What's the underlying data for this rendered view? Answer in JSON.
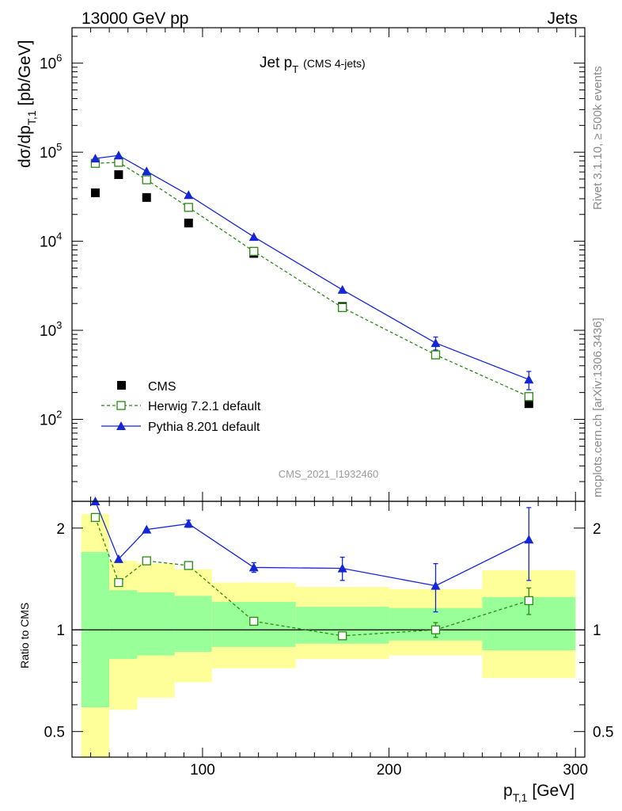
{
  "header": {
    "left_label": "13000 GeV pp",
    "right_label": "Jets"
  },
  "side_text": {
    "rivet": "Rivet 3.1.10, ≥ 500k events",
    "mcplots": "mcplots.cern.ch [arXiv:1306.3436]"
  },
  "chart_data": [
    {
      "type": "scatter",
      "title_main": "Jet p",
      "title_sub": "T",
      "title_note": "(CMS 4-jets)",
      "ylabel": "dσ/dp",
      "ylabel_sub": "T,1",
      "ylabel_unit": "[pb/GeV]",
      "x_scale": "linear",
      "y_scale": "log",
      "xlim": [
        30,
        305
      ],
      "ylim": [
        12,
        2500000
      ],
      "y_ticks": [
        {
          "value": 100,
          "base": "10",
          "exp": "2"
        },
        {
          "value": 1000,
          "base": "10",
          "exp": "3"
        },
        {
          "value": 10000,
          "base": "10",
          "exp": "4"
        },
        {
          "value": 100000,
          "base": "10",
          "exp": "5"
        },
        {
          "value": 1000000,
          "base": "10",
          "exp": "6"
        }
      ],
      "watermark": "CMS_2021_I1932460",
      "legend_position": "bottom-left",
      "series": [
        {
          "name": "CMS",
          "style": "black-square",
          "color": "#000000",
          "x": [
            42.5,
            55,
            70,
            92.5,
            127.5,
            175,
            225,
            275
          ],
          "y": [
            35000,
            56000,
            31000,
            16000,
            7300,
            1850,
            530,
            150
          ]
        },
        {
          "name": "Herwig 7.2.1 default",
          "style": "green-open-square-dashed",
          "color": "#2a8a12",
          "x": [
            42.5,
            55,
            70,
            92.5,
            127.5,
            175,
            225,
            275
          ],
          "y": [
            75000,
            77000,
            49000,
            24000,
            7700,
            1800,
            530,
            180
          ],
          "yerr": [
            0,
            0,
            0,
            0,
            0,
            0,
            0,
            0
          ]
        },
        {
          "name": "Pythia 8.201 default",
          "style": "blue-filled-triangle-solid",
          "color": "#1526d6",
          "x": [
            42.5,
            55,
            70,
            92.5,
            127.5,
            175,
            225,
            275
          ],
          "y": [
            85000,
            92000,
            61000,
            33000,
            11200,
            2850,
            720,
            280
          ],
          "yerr": [
            0,
            0,
            0,
            0,
            0,
            0,
            120,
            65
          ]
        }
      ]
    },
    {
      "type": "scatter",
      "ylabel": "Ratio to CMS",
      "xlabel": "p",
      "xlabel_sub": "T,1",
      "xlabel_unit": "[GeV]",
      "x_scale": "linear",
      "y_scale": "log",
      "xlim": [
        30,
        305
      ],
      "ylim": [
        0.42,
        2.4
      ],
      "x_ticks": [
        100,
        200,
        300
      ],
      "y_ticks": [
        0.5,
        1,
        2
      ],
      "bins": [
        {
          "lo": 35,
          "hi": 50,
          "yellow": [
            0.35,
            2.2
          ],
          "green": [
            0.59,
            1.7
          ]
        },
        {
          "lo": 50,
          "hi": 65,
          "yellow": [
            0.58,
            1.6
          ],
          "green": [
            0.82,
            1.31
          ]
        },
        {
          "lo": 65,
          "hi": 85,
          "yellow": [
            0.63,
            1.57
          ],
          "green": [
            0.84,
            1.29
          ]
        },
        {
          "lo": 85,
          "hi": 105,
          "yellow": [
            0.7,
            1.51
          ],
          "green": [
            0.86,
            1.26
          ]
        },
        {
          "lo": 105,
          "hi": 150,
          "yellow": [
            0.77,
            1.38
          ],
          "green": [
            0.89,
            1.21
          ]
        },
        {
          "lo": 150,
          "hi": 200,
          "yellow": [
            0.82,
            1.34
          ],
          "green": [
            0.91,
            1.17
          ]
        },
        {
          "lo": 200,
          "hi": 250,
          "yellow": [
            0.84,
            1.32
          ],
          "green": [
            0.93,
            1.16
          ]
        },
        {
          "lo": 250,
          "hi": 300,
          "yellow": [
            0.72,
            1.5
          ],
          "green": [
            0.87,
            1.25
          ]
        }
      ],
      "series": [
        {
          "name": "Herwig 7.2.1 default",
          "color": "#2a8a12",
          "x": [
            42.5,
            55,
            70,
            92.5,
            127.5,
            175,
            225,
            275
          ],
          "y": [
            2.15,
            1.38,
            1.6,
            1.55,
            1.06,
            0.96,
            1.0,
            1.22
          ],
          "yerr": [
            0,
            0,
            0,
            0,
            0,
            0,
            0.05,
            0.11
          ]
        },
        {
          "name": "Pythia 8.201 default",
          "color": "#1526d6",
          "x": [
            42.5,
            55,
            70,
            92.5,
            127.5,
            175,
            225,
            275
          ],
          "y": [
            2.4,
            1.62,
            1.98,
            2.06,
            1.53,
            1.52,
            1.35,
            1.85
          ],
          "yerr": [
            0,
            0,
            0,
            0.05,
            0.05,
            0.12,
            0.22,
            0.45
          ]
        }
      ]
    }
  ]
}
